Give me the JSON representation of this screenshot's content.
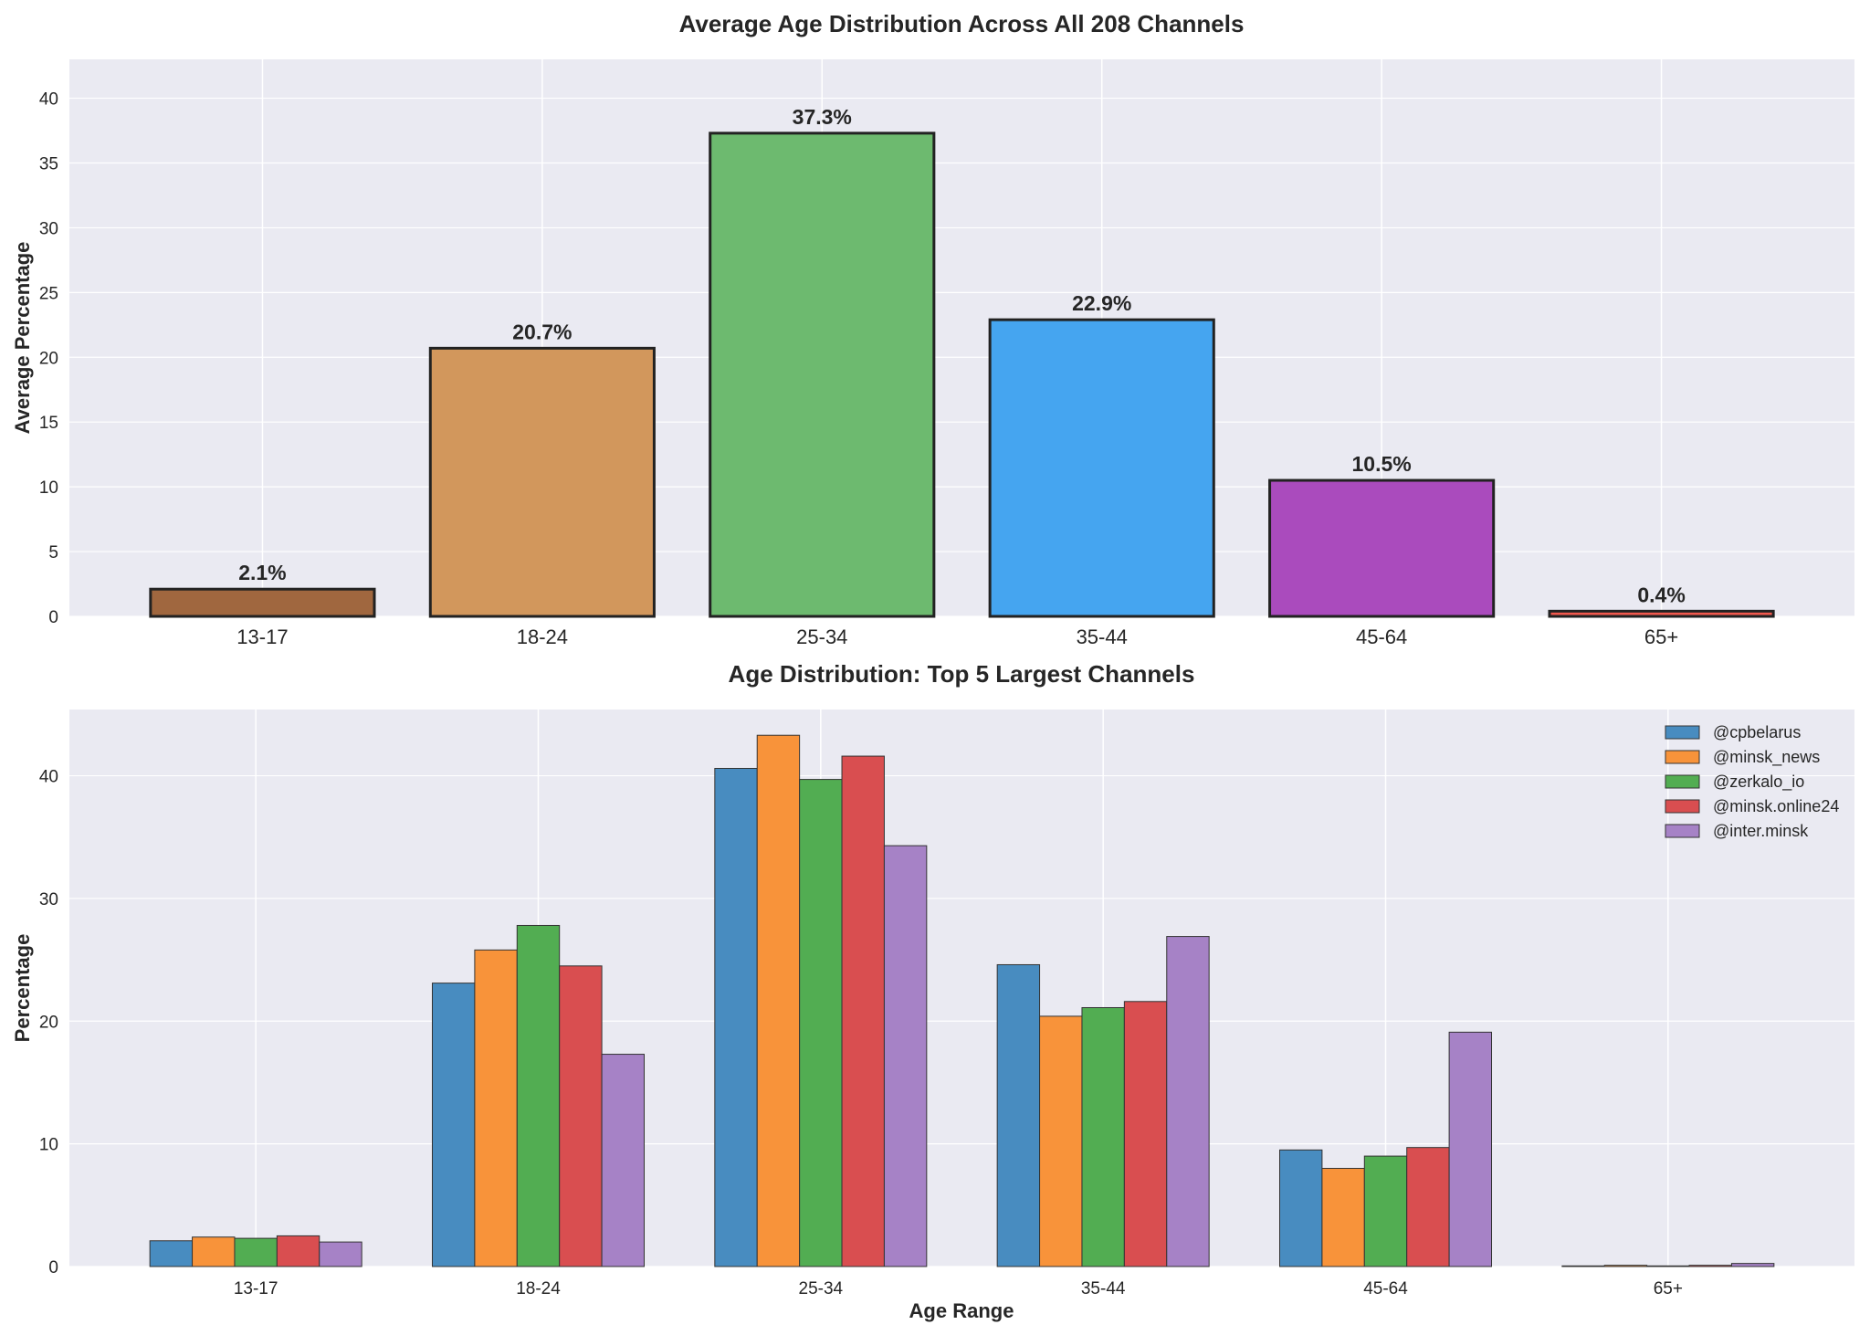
{
  "chart_data": [
    {
      "type": "bar",
      "title": "Average Age Distribution Across All 208 Channels",
      "xlabel": "",
      "ylabel": "Average Percentage",
      "categories": [
        "13-17",
        "18-24",
        "25-34",
        "35-44",
        "45-64",
        "65+"
      ],
      "values": [
        2.1,
        20.7,
        37.3,
        22.9,
        10.5,
        0.4
      ],
      "data_labels": [
        "2.1%",
        "20.7%",
        "37.3%",
        "22.9%",
        "10.5%",
        "0.4%"
      ],
      "colors": [
        "#a0673f",
        "#d2975c",
        "#6dba6f",
        "#45a5f0",
        "#aa4bbd",
        "#f0594e"
      ],
      "ylim": [
        0,
        43
      ],
      "yticks": [
        0,
        5,
        10,
        15,
        20,
        25,
        30,
        35,
        40
      ],
      "grid": true
    },
    {
      "type": "bar",
      "title": "Age Distribution: Top 5 Largest Channels",
      "xlabel": "Age Range",
      "ylabel": "Percentage",
      "categories": [
        "13-17",
        "18-24",
        "25-34",
        "35-44",
        "45-64",
        "65+"
      ],
      "series": [
        {
          "name": "@cpbelarus",
          "color": "#488cc0",
          "values": [
            2.1,
            23.1,
            40.6,
            24.6,
            9.5,
            0.05
          ]
        },
        {
          "name": "@minsk_news",
          "color": "#f8933a",
          "values": [
            2.4,
            25.8,
            43.3,
            20.4,
            8.0,
            0.1
          ]
        },
        {
          "name": "@zerkalo_io",
          "color": "#52ad52",
          "values": [
            2.3,
            27.8,
            39.7,
            21.1,
            9.0,
            0.05
          ]
        },
        {
          "name": "@minsk.online24",
          "color": "#d94e50",
          "values": [
            2.5,
            24.5,
            41.6,
            21.6,
            9.7,
            0.1
          ]
        },
        {
          "name": "@inter.minsk",
          "color": "#a682c6",
          "values": [
            2.0,
            17.3,
            34.3,
            26.9,
            19.1,
            0.25
          ]
        }
      ],
      "ylim": [
        0,
        45.4
      ],
      "yticks": [
        0,
        10,
        20,
        30,
        40
      ],
      "legend": "top-right",
      "grid": true
    }
  ]
}
